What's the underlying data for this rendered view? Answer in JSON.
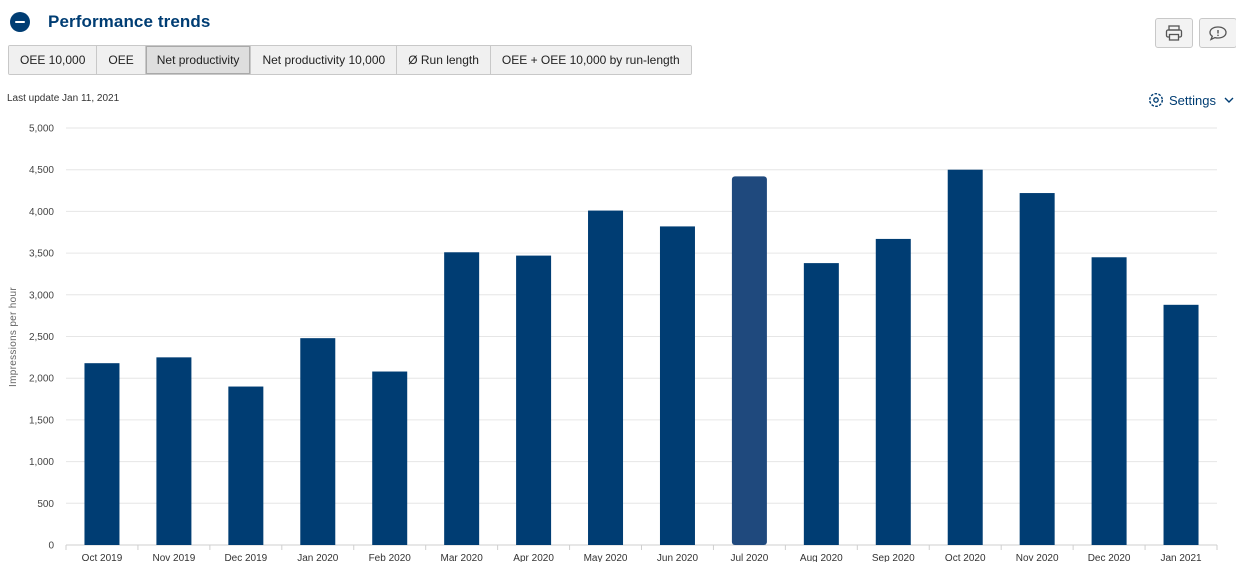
{
  "header": {
    "title": "Performance trends"
  },
  "tabs": [
    {
      "label": "OEE 10,000",
      "active": false
    },
    {
      "label": "OEE",
      "active": false
    },
    {
      "label": "Net productivity",
      "active": true
    },
    {
      "label": "Net productivity 10,000",
      "active": false
    },
    {
      "label": "Ø Run length",
      "active": false
    },
    {
      "label": "OEE + OEE 10,000 by run-length",
      "active": false
    }
  ],
  "toolbar": {
    "print_icon": "printer-icon",
    "feedback_icon": "feedback-speech-bubble-icon"
  },
  "last_update": "Last update Jan 11, 2021",
  "settings": {
    "label": "Settings",
    "icon": "gear-icon"
  },
  "colors": {
    "bar": "#003d73",
    "bar_highlight": "#1f497d",
    "grid": "#e6e6e6",
    "accent": "#003d73"
  },
  "chart_data": {
    "type": "bar",
    "categories": [
      "Oct 2019",
      "Nov 2019",
      "Dec 2019",
      "Jan 2020",
      "Feb 2020",
      "Mar 2020",
      "Apr 2020",
      "May 2020",
      "Jun 2020",
      "Jul 2020",
      "Aug 2020",
      "Sep 2020",
      "Oct 2020",
      "Nov 2020",
      "Dec 2020",
      "Jan 2021"
    ],
    "values": [
      2180,
      2250,
      1900,
      2480,
      2080,
      3510,
      3470,
      4010,
      3820,
      4420,
      3380,
      3670,
      4500,
      4220,
      3450,
      2880
    ],
    "highlight_index": 9,
    "ylabel": "Impressions per hour",
    "ylim": [
      0,
      5000
    ],
    "yticks": [
      0,
      500,
      1000,
      1500,
      2000,
      2500,
      3000,
      3500,
      4000,
      4500,
      5000
    ],
    "grid": true
  }
}
